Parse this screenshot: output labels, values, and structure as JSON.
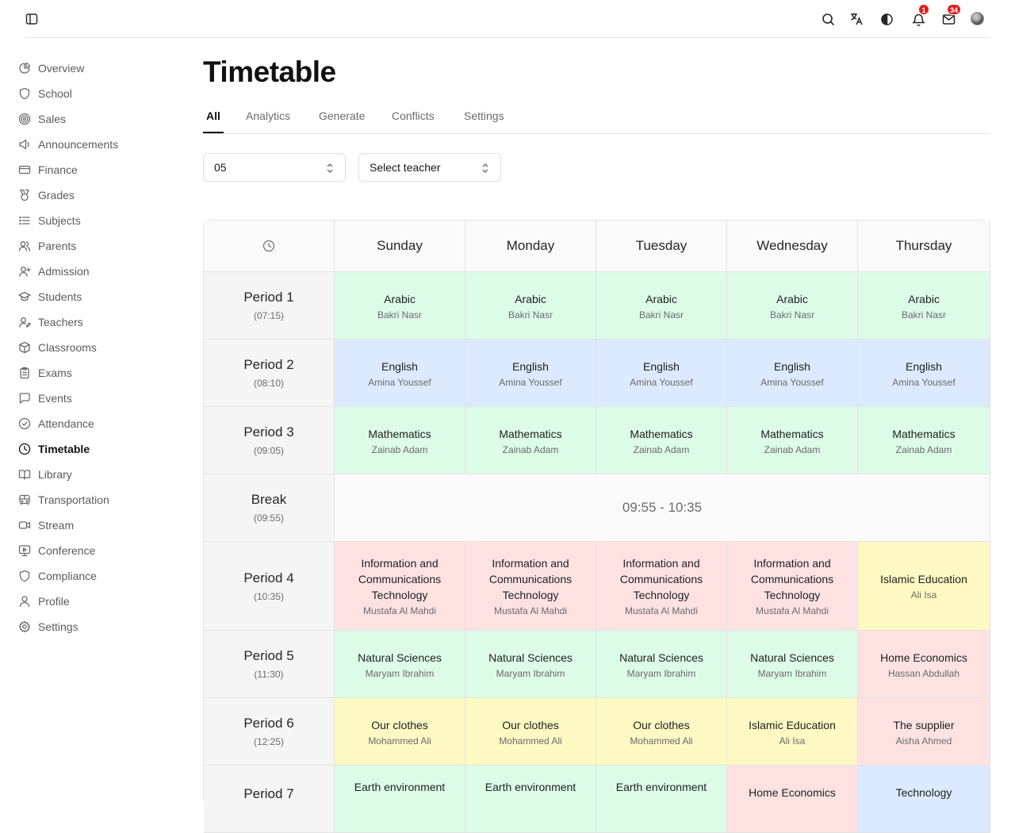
{
  "topbar": {
    "notifications_count": "1",
    "messages_count": "34"
  },
  "sidebar": {
    "items": [
      {
        "label": "Overview",
        "icon": "pie-chart-icon"
      },
      {
        "label": "School",
        "icon": "shield-icon"
      },
      {
        "label": "Sales",
        "icon": "target-icon"
      },
      {
        "label": "Announcements",
        "icon": "megaphone-icon"
      },
      {
        "label": "Finance",
        "icon": "credit-card-icon"
      },
      {
        "label": "Grades",
        "icon": "medal-icon"
      },
      {
        "label": "Subjects",
        "icon": "list-icon"
      },
      {
        "label": "Parents",
        "icon": "users-icon"
      },
      {
        "label": "Admission",
        "icon": "user-plus-icon"
      },
      {
        "label": "Students",
        "icon": "graduation-cap-icon"
      },
      {
        "label": "Teachers",
        "icon": "user-pen-icon"
      },
      {
        "label": "Classrooms",
        "icon": "box-icon"
      },
      {
        "label": "Exams",
        "icon": "clipboard-icon"
      },
      {
        "label": "Events",
        "icon": "message-square-icon"
      },
      {
        "label": "Attendance",
        "icon": "check-circle-icon"
      },
      {
        "label": "Timetable",
        "icon": "clock-icon",
        "active": true
      },
      {
        "label": "Library",
        "icon": "book-open-icon"
      },
      {
        "label": "Transportation",
        "icon": "bus-icon"
      },
      {
        "label": "Stream",
        "icon": "video-icon"
      },
      {
        "label": "Conference",
        "icon": "monitor-play-icon"
      },
      {
        "label": "Compliance",
        "icon": "shield-icon"
      },
      {
        "label": "Profile",
        "icon": "user-icon"
      },
      {
        "label": "Settings",
        "icon": "gear-icon"
      }
    ]
  },
  "page": {
    "title": "Timetable",
    "tabs": [
      "All",
      "Analytics",
      "Generate",
      "Conflicts",
      "Settings"
    ],
    "active_tab": "All"
  },
  "filters": {
    "class_value": "05",
    "teacher_placeholder": "Select teacher"
  },
  "timetable": {
    "days": [
      "Sunday",
      "Monday",
      "Tuesday",
      "Wednesday",
      "Thursday"
    ],
    "break_label": "Break",
    "break_time": "(09:55)",
    "break_range": "09:55 - 10:35",
    "periods": [
      {
        "name": "Period 1",
        "time": "(07:15)",
        "cells": [
          {
            "subject": "Arabic",
            "teacher": "Bakri Nasr",
            "color": "green"
          },
          {
            "subject": "Arabic",
            "teacher": "Bakri Nasr",
            "color": "green"
          },
          {
            "subject": "Arabic",
            "teacher": "Bakri Nasr",
            "color": "green"
          },
          {
            "subject": "Arabic",
            "teacher": "Bakri Nasr",
            "color": "green"
          },
          {
            "subject": "Arabic",
            "teacher": "Bakri Nasr",
            "color": "green"
          }
        ]
      },
      {
        "name": "Period 2",
        "time": "(08:10)",
        "cells": [
          {
            "subject": "English",
            "teacher": "Amina Youssef",
            "color": "blue"
          },
          {
            "subject": "English",
            "teacher": "Amina Youssef",
            "color": "blue"
          },
          {
            "subject": "English",
            "teacher": "Amina Youssef",
            "color": "blue"
          },
          {
            "subject": "English",
            "teacher": "Amina Youssef",
            "color": "blue"
          },
          {
            "subject": "English",
            "teacher": "Amina Youssef",
            "color": "blue"
          }
        ]
      },
      {
        "name": "Period 3",
        "time": "(09:05)",
        "cells": [
          {
            "subject": "Mathematics",
            "teacher": "Zainab Adam",
            "color": "green"
          },
          {
            "subject": "Mathematics",
            "teacher": "Zainab Adam",
            "color": "green"
          },
          {
            "subject": "Mathematics",
            "teacher": "Zainab Adam",
            "color": "green"
          },
          {
            "subject": "Mathematics",
            "teacher": "Zainab Adam",
            "color": "green"
          },
          {
            "subject": "Mathematics",
            "teacher": "Zainab Adam",
            "color": "green"
          }
        ]
      },
      {
        "name": "Period 4",
        "time": "(10:35)",
        "cells": [
          {
            "subject": "Information and Communications Technology",
            "teacher": "Mustafa Al Mahdi",
            "color": "red"
          },
          {
            "subject": "Information and Communications Technology",
            "teacher": "Mustafa Al Mahdi",
            "color": "red"
          },
          {
            "subject": "Information and Communications Technology",
            "teacher": "Mustafa Al Mahdi",
            "color": "red"
          },
          {
            "subject": "Information and Communications Technology",
            "teacher": "Mustafa Al Mahdi",
            "color": "red"
          },
          {
            "subject": "Islamic Education",
            "teacher": "Ali Isa",
            "color": "yellow"
          }
        ]
      },
      {
        "name": "Period 5",
        "time": "(11:30)",
        "cells": [
          {
            "subject": "Natural Sciences",
            "teacher": "Maryam Ibrahim",
            "color": "green"
          },
          {
            "subject": "Natural Sciences",
            "teacher": "Maryam Ibrahim",
            "color": "green"
          },
          {
            "subject": "Natural Sciences",
            "teacher": "Maryam Ibrahim",
            "color": "green"
          },
          {
            "subject": "Natural Sciences",
            "teacher": "Maryam Ibrahim",
            "color": "green"
          },
          {
            "subject": "Home Economics",
            "teacher": "Hassan Abdullah",
            "color": "red"
          }
        ]
      },
      {
        "name": "Period 6",
        "time": "(12:25)",
        "cells": [
          {
            "subject": "Our clothes",
            "teacher": "Mohammed Ali",
            "color": "yellow"
          },
          {
            "subject": "Our clothes",
            "teacher": "Mohammed Ali",
            "color": "yellow"
          },
          {
            "subject": "Our clothes",
            "teacher": "Mohammed Ali",
            "color": "yellow"
          },
          {
            "subject": "Islamic Education",
            "teacher": "Ali Isa",
            "color": "yellow"
          },
          {
            "subject": "The supplier",
            "teacher": "Aisha Ahmed",
            "color": "red"
          }
        ]
      },
      {
        "name": "Period 7",
        "time": "",
        "cells": [
          {
            "subject": "Earth environment",
            "teacher": "",
            "color": "green"
          },
          {
            "subject": "Earth environment",
            "teacher": "",
            "color": "green"
          },
          {
            "subject": "Earth environment",
            "teacher": "",
            "color": "green"
          },
          {
            "subject": "Home Economics",
            "teacher": "",
            "color": "red"
          },
          {
            "subject": "Technology",
            "teacher": "",
            "color": "blue"
          }
        ]
      }
    ]
  }
}
